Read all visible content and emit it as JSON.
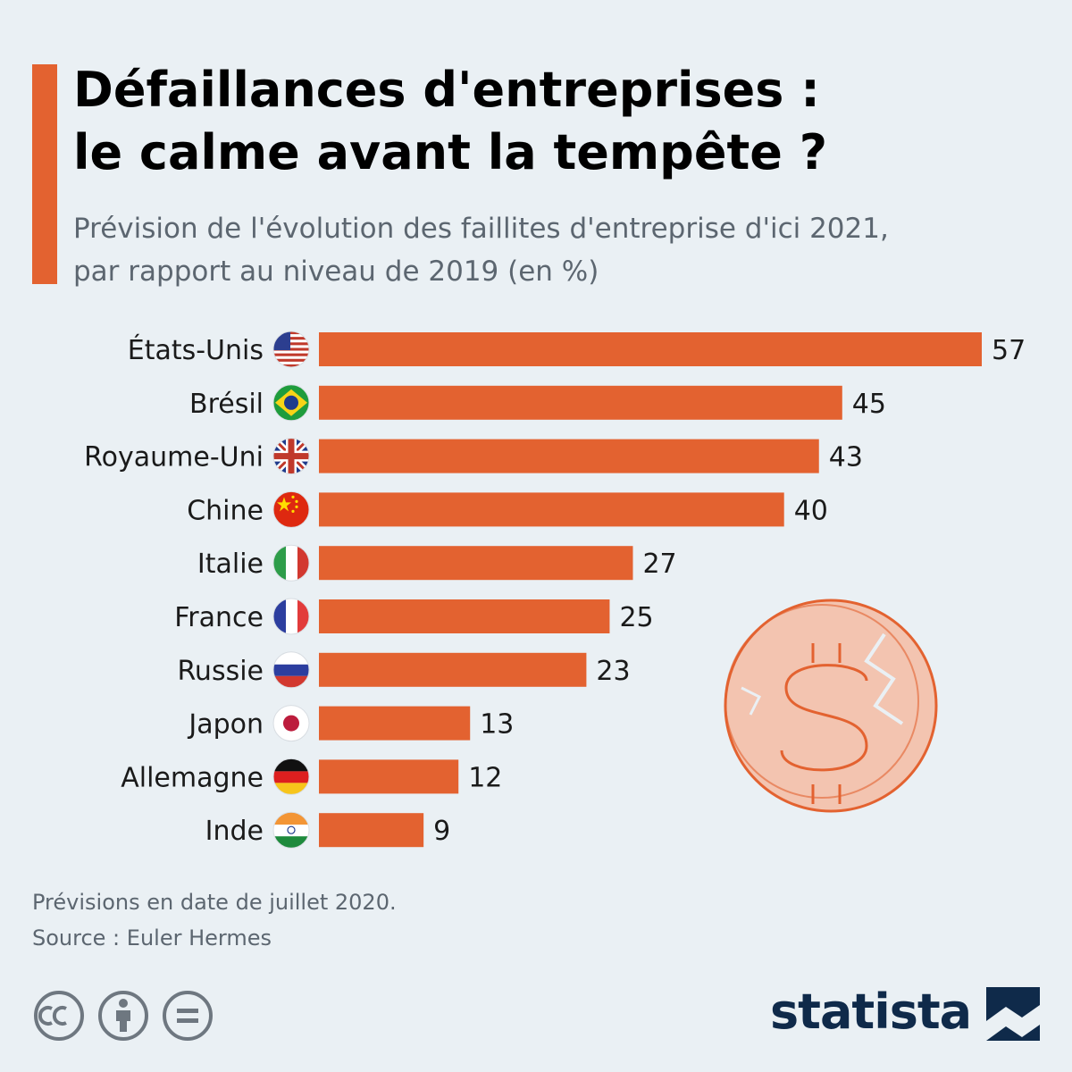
{
  "title_lines": [
    "Défaillances d'entreprises :",
    "le calme avant la tempête ?"
  ],
  "subtitle_lines": [
    "Prévision de l'évolution des faillites d'entreprise d'ici 2021,",
    "par rapport au niveau de 2019 (en %)"
  ],
  "footnote": {
    "note": "Prévisions en date de juillet 2020.",
    "source": "Source : Euler Hermes"
  },
  "brand": {
    "logo_text": "statista"
  },
  "colors": {
    "bar": "#e36230",
    "accent": "#e36230",
    "background": "#eaf0f4",
    "brand": "#0f2a4a"
  },
  "license_icons": [
    "creative-commons-icon",
    "attribution-icon",
    "no-derivatives-icon"
  ],
  "illustration": "cracked-dollar-coin-icon",
  "chart_data": {
    "type": "bar",
    "orientation": "horizontal",
    "title": "Défaillances d'entreprises : le calme avant la tempête ?",
    "subtitle": "Prévision de l'évolution des faillites d'entreprise d'ici 2021, par rapport au niveau de 2019 (en %)",
    "categories": [
      "États-Unis",
      "Brésil",
      "Royaume-Uni",
      "Chine",
      "Italie",
      "France",
      "Russie",
      "Japon",
      "Allemagne",
      "Inde"
    ],
    "values": [
      57,
      45,
      43,
      40,
      27,
      25,
      23,
      13,
      12,
      9
    ],
    "flags": [
      "us-flag-icon",
      "brazil-flag-icon",
      "uk-flag-icon",
      "china-flag-icon",
      "italy-flag-icon",
      "france-flag-icon",
      "russia-flag-icon",
      "japan-flag-icon",
      "germany-flag-icon",
      "india-flag-icon"
    ],
    "xlim": [
      0,
      57
    ],
    "grid": false,
    "legend": "none",
    "data_labels": true
  }
}
